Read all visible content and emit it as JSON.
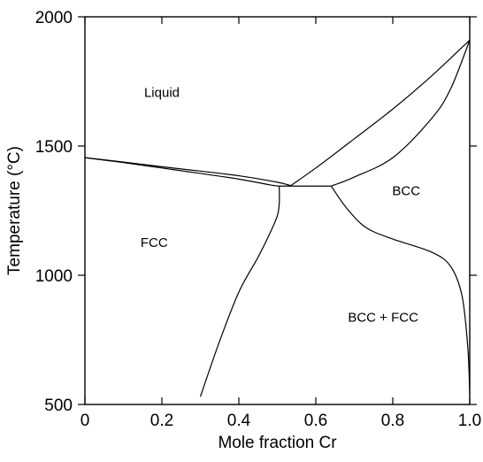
{
  "chart_data": {
    "type": "line",
    "title": "",
    "xlabel": "Mole fraction Cr",
    "ylabel": "Temperature (°C)",
    "xlim": [
      0,
      1.0
    ],
    "ylim": [
      500,
      2000
    ],
    "x_ticks": [
      0,
      0.2,
      0.4,
      0.6,
      0.8,
      1.0
    ],
    "x_tick_labels": [
      "0",
      "0.2",
      "0.4",
      "0.6",
      "0.8",
      "1.0"
    ],
    "y_ticks": [
      500,
      1000,
      1500,
      2000
    ],
    "y_tick_labels": [
      "500",
      "1000",
      "1500",
      "2000"
    ],
    "grid": false,
    "series": [
      {
        "values": [
          [
            0,
            1455
          ],
          [
            0.1,
            1438
          ],
          [
            0.2,
            1420
          ],
          [
            0.3,
            1403
          ],
          [
            0.4,
            1385
          ],
          [
            0.5,
            1360
          ],
          [
            0.535,
            1347
          ]
        ]
      },
      {
        "values": [
          [
            0,
            1455
          ],
          [
            0.1,
            1436
          ],
          [
            0.2,
            1415
          ],
          [
            0.3,
            1394
          ],
          [
            0.4,
            1372
          ],
          [
            0.48,
            1350
          ],
          [
            0.505,
            1345
          ]
        ]
      },
      {
        "values": [
          [
            0.505,
            1345
          ],
          [
            0.64,
            1345
          ]
        ]
      },
      {
        "values": [
          [
            0.535,
            1347
          ],
          [
            0.6,
            1415
          ],
          [
            0.7,
            1528
          ],
          [
            0.8,
            1643
          ],
          [
            0.9,
            1770
          ],
          [
            1.0,
            1910
          ]
        ]
      },
      {
        "values": [
          [
            0.64,
            1345
          ],
          [
            0.7,
            1380
          ],
          [
            0.8,
            1455
          ],
          [
            0.9,
            1605
          ],
          [
            0.95,
            1720
          ],
          [
            1.0,
            1910
          ]
        ]
      },
      {
        "values": [
          [
            0.505,
            1345
          ],
          [
            0.505,
            1280
          ],
          [
            0.5,
            1230
          ],
          [
            0.48,
            1160
          ],
          [
            0.45,
            1070
          ],
          [
            0.4,
            935
          ],
          [
            0.35,
            745
          ],
          [
            0.3,
            530
          ]
        ]
      },
      {
        "values": [
          [
            0.64,
            1345
          ],
          [
            0.68,
            1260
          ],
          [
            0.73,
            1185
          ],
          [
            0.8,
            1140
          ],
          [
            0.9,
            1090
          ],
          [
            0.95,
            1035
          ],
          [
            0.98,
            920
          ],
          [
            0.995,
            720
          ],
          [
            1.0,
            540
          ]
        ]
      }
    ],
    "annotations": [
      {
        "text": "Liquid",
        "x": 0.2,
        "y": 1690
      },
      {
        "text": "FCC",
        "x": 0.18,
        "y": 1110
      },
      {
        "text": "BCC",
        "x": 0.835,
        "y": 1310
      },
      {
        "text": "BCC + FCC",
        "x": 0.775,
        "y": 820
      }
    ]
  }
}
